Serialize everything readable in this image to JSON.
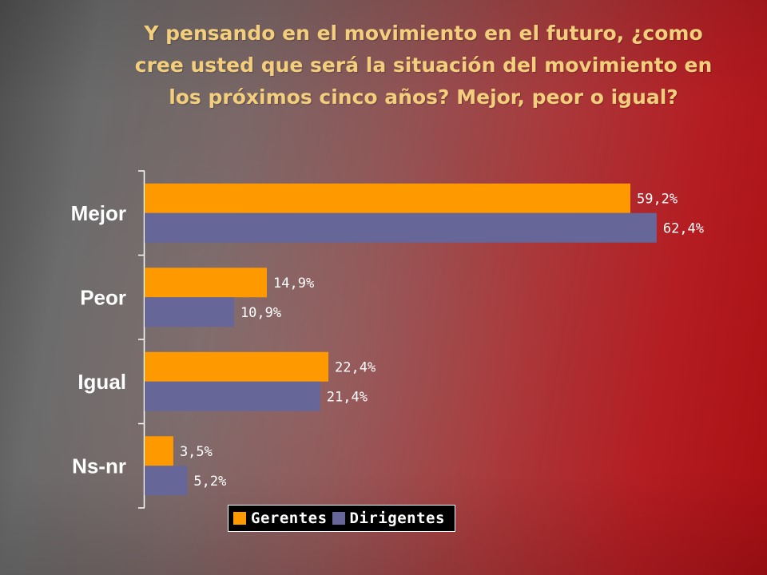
{
  "title_lines": [
    "Y pensando en el movimiento en el futuro, ¿como",
    "cree  usted que será la situación del movimiento en",
    "los próximos cinco años? Mejor, peor o igual?"
  ],
  "colors": {
    "series_gerentes": "#ff9900",
    "series_dirigentes": "#666699",
    "title": "#f3cf7d"
  },
  "chart_data": {
    "type": "bar",
    "orientation": "horizontal",
    "categories": [
      "Mejor",
      "Peor",
      "Igual",
      "Ns-nr"
    ],
    "series": [
      {
        "name": "Gerentes",
        "values": [
          59.2,
          14.9,
          22.4,
          3.5
        ],
        "labels": [
          "59,2%",
          "14,9%",
          "22,4%",
          "3,5%"
        ]
      },
      {
        "name": "Dirigentes",
        "values": [
          62.4,
          10.9,
          21.4,
          5.2
        ],
        "labels": [
          "62,4%",
          "10,9%",
          "21,4%",
          "5,2%"
        ]
      }
    ],
    "xlim": [
      0,
      70
    ],
    "grid": false,
    "legend_position": "bottom"
  }
}
